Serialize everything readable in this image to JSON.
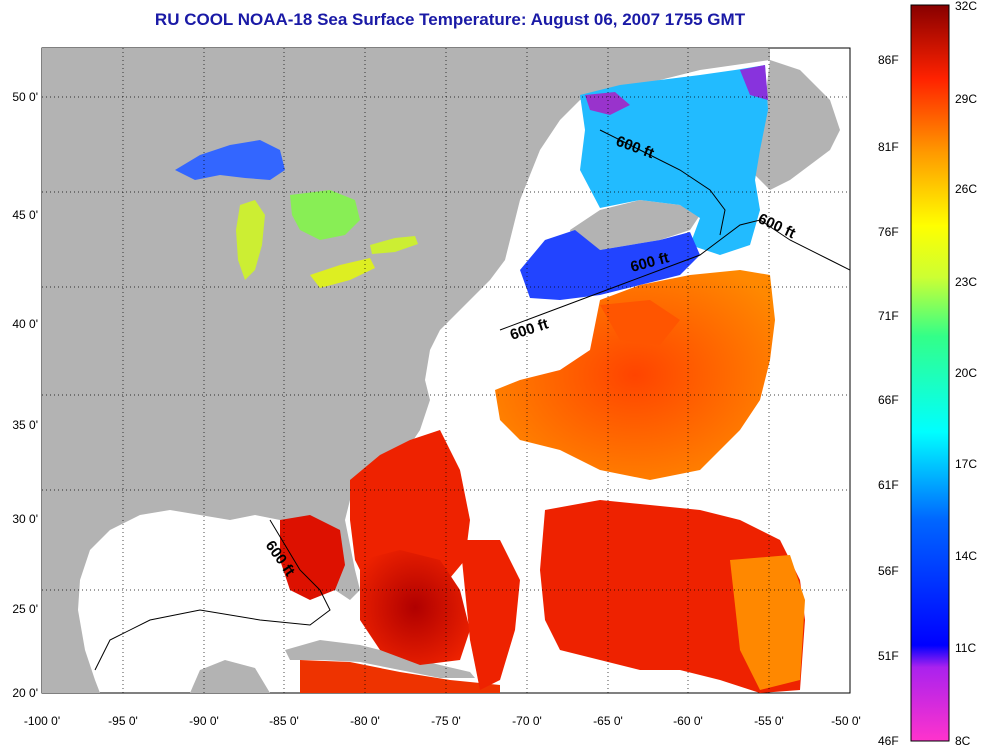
{
  "title": "RU COOL  NOAA-18  Sea Surface Temperature:  August 06, 2007 1755 GMT",
  "map": {
    "lon_range": [
      -100,
      -50
    ],
    "lat_range": [
      20,
      52.5
    ],
    "lon_ticks": [
      "-100 0'",
      "-95 0'",
      "-90 0'",
      "-85 0'",
      "-80 0'",
      "-75 0'",
      "-70 0'",
      "-65 0'",
      "-60 0'",
      "-55 0'",
      "-50 0'"
    ],
    "lat_ticks": [
      "50 0'",
      "45 0'",
      "40 0'",
      "35 0'",
      "30 0'",
      "25 0'",
      "20 0'"
    ],
    "grid": "dotted",
    "land_color": "#b3b3b3",
    "no_data_color": "#ffffff",
    "contour_labels": [
      "600 ft",
      "600 ft",
      "600 ft",
      "600 ft",
      "600 ft"
    ]
  },
  "colorbar": {
    "fahrenheit": [
      "86F",
      "81F",
      "76F",
      "71F",
      "66F",
      "61F",
      "56F",
      "51F",
      "46F"
    ],
    "celsius": [
      "32C",
      "29C",
      "26C",
      "23C",
      "20C",
      "17C",
      "14C",
      "11C",
      "8C"
    ],
    "range_c": [
      8,
      32
    ],
    "colors": [
      "#ff33cc",
      "#8a2be2",
      "#0000ff",
      "#00aaff",
      "#00ffff",
      "#66ff66",
      "#ffff00",
      "#ff9900",
      "#ff0000",
      "#880000"
    ]
  }
}
